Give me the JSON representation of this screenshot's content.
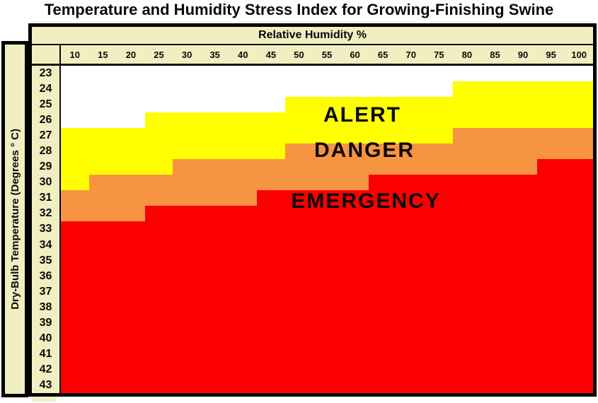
{
  "title": "Temperature and Humidity Stress Index for Growing-Finishing Swine",
  "x_axis": {
    "label": "Relative Humidity %",
    "ticks": [
      "10",
      "15",
      "20",
      "25",
      "30",
      "35",
      "40",
      "45",
      "50",
      "55",
      "60",
      "65",
      "70",
      "75",
      "80",
      "85",
      "90",
      "95",
      "100"
    ]
  },
  "y_axis": {
    "label": "Dry-Bulb Temperature (Degrees ° C)",
    "ticks": [
      "23",
      "24",
      "25",
      "26",
      "27",
      "28",
      "29",
      "30",
      "31",
      "32",
      "33",
      "34",
      "35",
      "36",
      "37",
      "38",
      "39",
      "40",
      "41",
      "42",
      "43"
    ]
  },
  "zone_labels": {
    "alert": "ALERT",
    "danger": "DANGER",
    "emergency": "EMERGENCY"
  },
  "colors": {
    "safe": "#FFFFFF",
    "alert": "#FFFF00",
    "danger": "#F79442",
    "emergency": "#FB0000",
    "panel": "#F1EFC2",
    "border": "#000000"
  },
  "chart_data": {
    "type": "heatmap",
    "title": "Temperature and Humidity Stress Index for Growing-Finishing Swine",
    "xlabel": "Relative Humidity %",
    "ylabel": "Dry-Bulb Temperature (Degrees ° C)",
    "humidity_percent": [
      10,
      15,
      20,
      25,
      30,
      35,
      40,
      45,
      50,
      55,
      60,
      65,
      70,
      75,
      80,
      85,
      90,
      95,
      100
    ],
    "temperature_c": [
      23,
      24,
      25,
      26,
      27,
      28,
      29,
      30,
      31,
      32,
      33,
      34,
      35,
      36,
      37,
      38,
      39,
      40,
      41,
      42,
      43
    ],
    "zones": [
      {
        "name": "ALERT",
        "color": "#FFFF00",
        "start_temp_c_by_humidity": [
          27,
          27,
          27,
          26,
          26,
          26,
          26,
          26,
          25,
          25,
          25,
          25,
          25,
          25,
          24,
          24,
          24,
          24,
          24
        ]
      },
      {
        "name": "DANGER",
        "color": "#F79442",
        "start_temp_c_by_humidity": [
          31,
          30,
          30,
          30,
          29,
          29,
          29,
          29,
          28,
          28,
          28,
          28,
          28,
          28,
          27,
          27,
          27,
          27,
          27
        ]
      },
      {
        "name": "EMERGENCY",
        "color": "#FB0000",
        "start_temp_c_by_humidity": [
          33,
          33,
          33,
          32,
          32,
          32,
          32,
          31,
          31,
          31,
          31,
          30,
          30,
          30,
          30,
          30,
          30,
          29,
          29
        ]
      }
    ],
    "safe_zone_color": "#FFFFFF",
    "grid": false,
    "legend_position": "labels-inside-plot"
  }
}
